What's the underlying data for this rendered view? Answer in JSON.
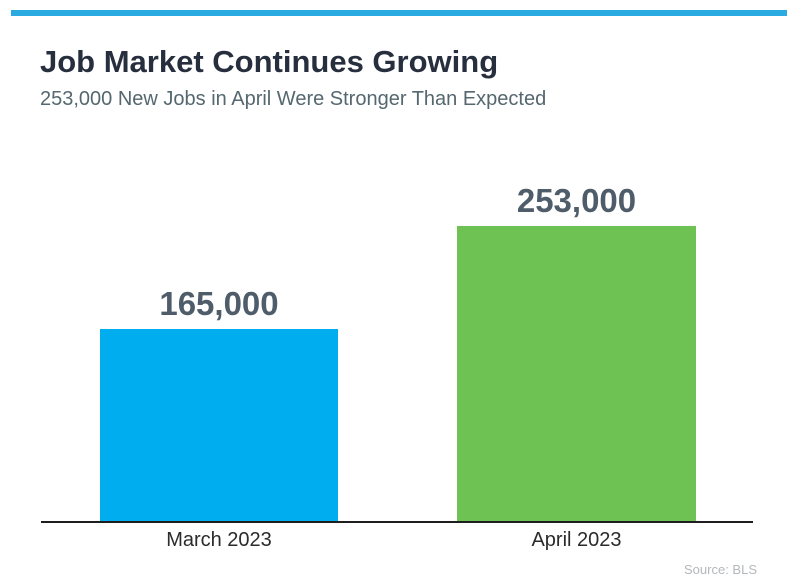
{
  "header": {
    "title": "Job Market Continues Growing",
    "subtitle": "253,000 New Jobs in April Were Stronger Than Expected"
  },
  "chart_data": {
    "type": "bar",
    "categories": [
      "March 2023",
      "April 2023"
    ],
    "values": [
      165000,
      253000
    ],
    "value_labels": [
      "165,000",
      "253,000"
    ],
    "title": "Job Market Continues Growing",
    "subtitle": "253,000 New Jobs in April Were Stronger Than Expected",
    "xlabel": "",
    "ylabel": "",
    "ylim": [
      0,
      280000
    ],
    "grid": false,
    "legend": false,
    "bar_colors": [
      "#00AEEF",
      "#6EC253"
    ],
    "accent_stripe_color": "#29ABE2",
    "value_label_color": "#4F5D6B",
    "axis_line_color": "#1E1E1E"
  },
  "footer": {
    "source": "Source: BLS"
  }
}
